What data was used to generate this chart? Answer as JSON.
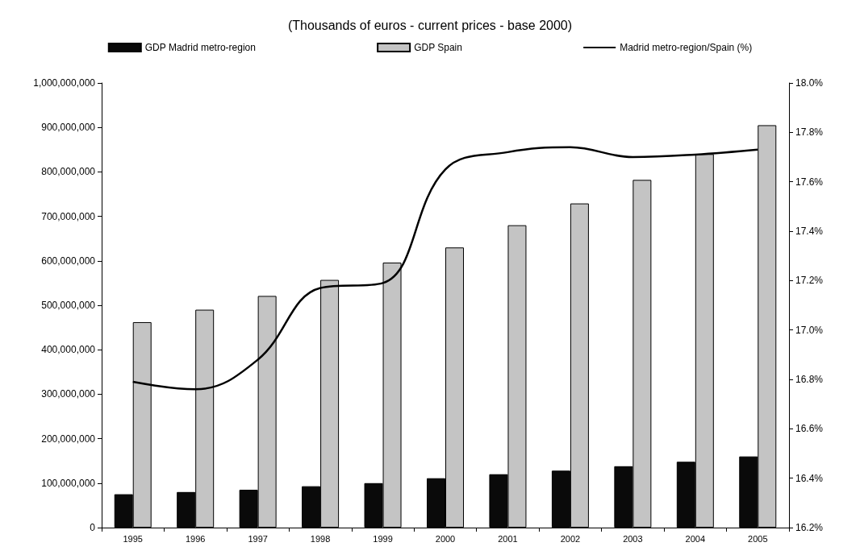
{
  "chart_data": {
    "type": "bar",
    "title": "(Thousands of euros - current prices - base 2000)",
    "categories": [
      "1995",
      "1996",
      "1997",
      "1998",
      "1999",
      "2000",
      "2001",
      "2002",
      "2003",
      "2004",
      "2005"
    ],
    "series": [
      {
        "name": "GDP Madrid metro-region",
        "color": "#0a0a0a",
        "values": [
          75000000,
          80000000,
          85000000,
          93000000,
          100000000,
          111000000,
          120000000,
          128000000,
          138000000,
          148000000,
          160000000
        ]
      },
      {
        "name": "GDP Spain",
        "color": "#c4c4c4",
        "values": [
          462000000,
          490000000,
          521000000,
          557000000,
          596000000,
          630000000,
          680000000,
          729000000,
          782000000,
          840000000,
          905000000
        ]
      },
      {
        "name": "Madrid metro-region/Spain (%)",
        "type": "line",
        "axis": "y2",
        "color": "#000000",
        "values": [
          16.79,
          16.76,
          16.88,
          17.17,
          17.19,
          17.65,
          17.72,
          17.74,
          17.7,
          17.71,
          17.73
        ]
      }
    ],
    "ylim": [
      0,
      1000000000
    ],
    "yticks": [
      0,
      {
        "value": 100000000,
        "label": "100,000,000"
      },
      {
        "value": 200000000,
        "label": "200,000,000"
      },
      {
        "value": 300000000,
        "label": "300,000,000"
      },
      {
        "value": 400000000,
        "label": "400,000,000"
      },
      {
        "value": 500000000,
        "label": "500,000,000"
      },
      {
        "value": 600000000,
        "label": "600,000,000"
      },
      {
        "value": 700000000,
        "label": "700,000,000"
      },
      {
        "value": 800000000,
        "label": "800,000,000"
      },
      {
        "value": 900000000,
        "label": "900,000,000"
      },
      {
        "value": 1000000000,
        "label": "1,000,000,000"
      }
    ],
    "y2lim": [
      16.2,
      18.0
    ],
    "y2ticks": [
      {
        "value": 16.2,
        "label": "16.2%"
      },
      {
        "value": 16.4,
        "label": "16.4%"
      },
      {
        "value": 16.6,
        "label": "16.6%"
      },
      {
        "value": 16.8,
        "label": "16.8%"
      },
      {
        "value": 17.0,
        "label": "17.0%"
      },
      {
        "value": 17.2,
        "label": "17.2%"
      },
      {
        "value": 17.4,
        "label": "17.4%"
      },
      {
        "value": 17.6,
        "label": "17.6%"
      },
      {
        "value": 17.8,
        "label": "17.8%"
      },
      {
        "value": 18.0,
        "label": "18.0%"
      }
    ],
    "grid": false,
    "legend": "top",
    "marker": "none",
    "line_style": "solid"
  }
}
